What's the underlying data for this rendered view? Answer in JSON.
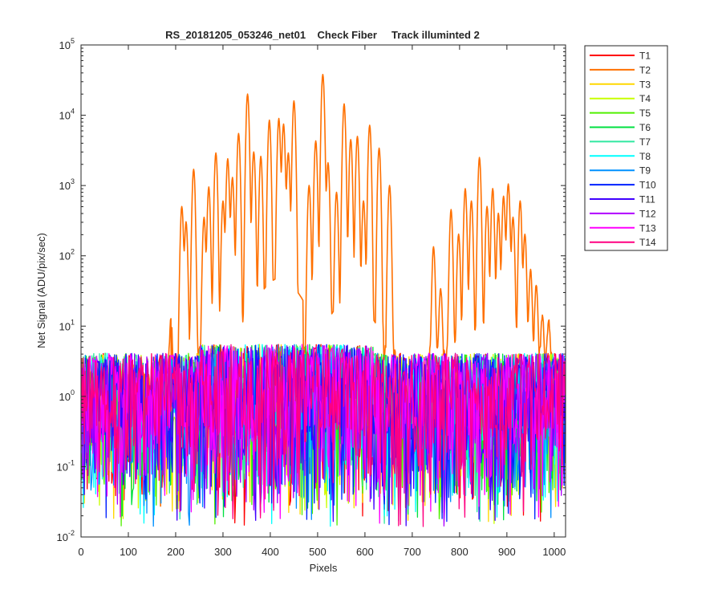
{
  "chart_data": {
    "type": "line",
    "title": "RS_20181205_053246_net01    Check Fiber     Track illuminted 2",
    "xlabel": "Pixels",
    "ylabel": "Net Signal (ADU/pix/sec)",
    "xlim": [
      0,
      1024
    ],
    "ylim": [
      0.01,
      100000
    ],
    "yscale": "log",
    "x_ticks": [
      0,
      100,
      200,
      300,
      400,
      500,
      600,
      700,
      800,
      900,
      1000
    ],
    "y_ticks": [
      {
        "base": "10",
        "exp": "-2",
        "value": 0.01
      },
      {
        "base": "10",
        "exp": "-1",
        "value": 0.1
      },
      {
        "base": "10",
        "exp": "0",
        "value": 1
      },
      {
        "base": "10",
        "exp": "1",
        "value": 10
      },
      {
        "base": "10",
        "exp": "2",
        "value": 100
      },
      {
        "base": "10",
        "exp": "3",
        "value": 1000
      },
      {
        "base": "10",
        "exp": "4",
        "value": 10000
      },
      {
        "base": "10",
        "exp": "5",
        "value": 100000
      }
    ],
    "grid": false,
    "legend_position": "outside-top-right",
    "noise_level": 0.9,
    "series": [
      {
        "name": "T1",
        "color": "#ff0000"
      },
      {
        "name": "T2",
        "color": "#ff7000",
        "peaks": [
          {
            "x": 190,
            "y": 12
          },
          {
            "x": 213,
            "y": 500
          },
          {
            "x": 222,
            "y": 300
          },
          {
            "x": 238,
            "y": 1700
          },
          {
            "x": 260,
            "y": 350
          },
          {
            "x": 270,
            "y": 950
          },
          {
            "x": 285,
            "y": 2900
          },
          {
            "x": 300,
            "y": 600
          },
          {
            "x": 310,
            "y": 2400
          },
          {
            "x": 320,
            "y": 1300
          },
          {
            "x": 333,
            "y": 5500
          },
          {
            "x": 352,
            "y": 20000
          },
          {
            "x": 365,
            "y": 3000
          },
          {
            "x": 380,
            "y": 2600
          },
          {
            "x": 398,
            "y": 8500
          },
          {
            "x": 418,
            "y": 9000
          },
          {
            "x": 428,
            "y": 7500
          },
          {
            "x": 438,
            "y": 2900
          },
          {
            "x": 450,
            "y": 16000
          },
          {
            "x": 482,
            "y": 1000
          },
          {
            "x": 496,
            "y": 4300
          },
          {
            "x": 511,
            "y": 38000
          },
          {
            "x": 522,
            "y": 2100
          },
          {
            "x": 540,
            "y": 800
          },
          {
            "x": 556,
            "y": 14500
          },
          {
            "x": 570,
            "y": 4500
          },
          {
            "x": 584,
            "y": 5000
          },
          {
            "x": 597,
            "y": 600
          },
          {
            "x": 610,
            "y": 7200
          },
          {
            "x": 630,
            "y": 3400
          },
          {
            "x": 652,
            "y": 1000
          },
          {
            "x": 745,
            "y": 130
          },
          {
            "x": 760,
            "y": 30
          },
          {
            "x": 782,
            "y": 450
          },
          {
            "x": 798,
            "y": 200
          },
          {
            "x": 812,
            "y": 900
          },
          {
            "x": 825,
            "y": 600
          },
          {
            "x": 842,
            "y": 2500
          },
          {
            "x": 858,
            "y": 500
          },
          {
            "x": 870,
            "y": 900
          },
          {
            "x": 882,
            "y": 400
          },
          {
            "x": 893,
            "y": 700
          },
          {
            "x": 903,
            "y": 1050
          },
          {
            "x": 913,
            "y": 350
          },
          {
            "x": 928,
            "y": 600
          },
          {
            "x": 938,
            "y": 200
          },
          {
            "x": 950,
            "y": 60
          },
          {
            "x": 962,
            "y": 35
          },
          {
            "x": 975,
            "y": 10
          },
          {
            "x": 988,
            "y": 8
          }
        ]
      },
      {
        "name": "T3",
        "color": "#ffd700"
      },
      {
        "name": "T4",
        "color": "#c8ff00"
      },
      {
        "name": "T5",
        "color": "#50f000"
      },
      {
        "name": "T6",
        "color": "#00e040"
      },
      {
        "name": "T7",
        "color": "#30e8a0"
      },
      {
        "name": "T8",
        "color": "#00ffff"
      },
      {
        "name": "T9",
        "color": "#0090ff"
      },
      {
        "name": "T10",
        "color": "#0020ff"
      },
      {
        "name": "T11",
        "color": "#4000ff"
      },
      {
        "name": "T12",
        "color": "#b000ff"
      },
      {
        "name": "T13",
        "color": "#ff00ff"
      },
      {
        "name": "T14",
        "color": "#ff0080"
      }
    ]
  }
}
